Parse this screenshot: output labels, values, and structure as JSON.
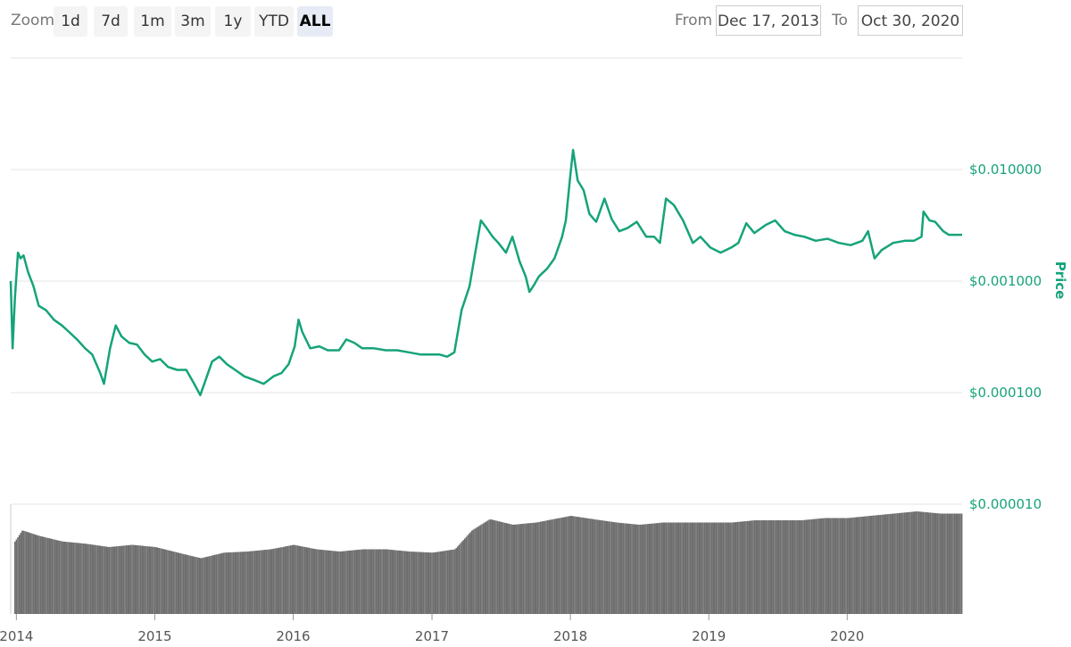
{
  "toolbar": {
    "zoom_label": "Zoom",
    "buttons": [
      "1d",
      "7d",
      "1m",
      "3m",
      "1y",
      "YTD",
      "ALL"
    ],
    "active": "ALL",
    "from_label": "From",
    "from_value": "Dec 17, 2013",
    "to_label": "To",
    "to_value": "Oct 30, 2020"
  },
  "colors": {
    "price_line": "#16a37a",
    "volume_fill": "#6e6e6e",
    "price_axis_label": "#16a37a"
  },
  "chart_data": [
    {
      "type": "line",
      "ylabel": "Price",
      "y_scale": "log",
      "ylim": [
        1e-05,
        0.1
      ],
      "y_ticks": [
        {
          "value": 0.01,
          "label": "$0.010000"
        },
        {
          "value": 0.001,
          "label": "$0.001000"
        },
        {
          "value": 0.0001,
          "label": "$0.000100"
        },
        {
          "value": 1e-05,
          "label": "$0.000010"
        }
      ],
      "x_ticks": [
        "2014",
        "2015",
        "2016",
        "2017",
        "2018",
        "2019",
        "2020"
      ],
      "grid": true,
      "series": [
        {
          "x": [
            "2013-12-17",
            "2013-12-22",
            "2013-12-28",
            "2014-01-05",
            "2014-01-12",
            "2014-01-20",
            "2014-02-01",
            "2014-02-15",
            "2014-03-01",
            "2014-03-20",
            "2014-04-10",
            "2014-05-01",
            "2014-05-20",
            "2014-06-10",
            "2014-07-01",
            "2014-07-20",
            "2014-08-10",
            "2014-08-20",
            "2014-09-05",
            "2014-09-20",
            "2014-10-05",
            "2014-10-25",
            "2014-11-15",
            "2014-12-05",
            "2014-12-25",
            "2015-01-15",
            "2015-02-05",
            "2015-03-01",
            "2015-03-25",
            "2015-04-15",
            "2015-05-01",
            "2015-05-15",
            "2015-06-01",
            "2015-06-20",
            "2015-07-10",
            "2015-08-01",
            "2015-08-25",
            "2015-09-20",
            "2015-10-15",
            "2015-11-10",
            "2015-12-01",
            "2015-12-20",
            "2016-01-05",
            "2016-01-15",
            "2016-01-25",
            "2016-02-15",
            "2016-03-10",
            "2016-04-01",
            "2016-05-01",
            "2016-05-20",
            "2016-06-10",
            "2016-07-01",
            "2016-08-01",
            "2016-09-01",
            "2016-10-01",
            "2016-11-01",
            "2016-12-01",
            "2017-01-01",
            "2017-01-20",
            "2017-02-10",
            "2017-03-01",
            "2017-03-20",
            "2017-04-10",
            "2017-04-25",
            "2017-05-10",
            "2017-05-25",
            "2017-06-10",
            "2017-06-25",
            "2017-07-15",
            "2017-08-01",
            "2017-08-20",
            "2017-09-05",
            "2017-09-15",
            "2017-09-25",
            "2017-10-10",
            "2017-11-01",
            "2017-11-20",
            "2017-12-10",
            "2017-12-20",
            "2018-01-01",
            "2018-01-08",
            "2018-01-20",
            "2018-02-05",
            "2018-02-20",
            "2018-03-10",
            "2018-04-01",
            "2018-04-20",
            "2018-05-10",
            "2018-06-01",
            "2018-06-25",
            "2018-07-20",
            "2018-08-10",
            "2018-08-25",
            "2018-09-10",
            "2018-10-01",
            "2018-10-25",
            "2018-11-20",
            "2018-12-10",
            "2019-01-05",
            "2019-02-01",
            "2019-03-01",
            "2019-03-20",
            "2019-04-10",
            "2019-05-01",
            "2019-06-01",
            "2019-06-25",
            "2019-07-20",
            "2019-08-15",
            "2019-09-10",
            "2019-10-10",
            "2019-11-10",
            "2019-12-10",
            "2020-01-10",
            "2020-02-10",
            "2020-02-25",
            "2020-03-13",
            "2020-04-01",
            "2020-05-01",
            "2020-06-01",
            "2020-06-25",
            "2020-07-15",
            "2020-07-20",
            "2020-08-05",
            "2020-08-20",
            "2020-09-10",
            "2020-09-25",
            "2020-10-10",
            "2020-10-30"
          ],
          "y": [
            0.001,
            0.00025,
            0.0007,
            0.0018,
            0.0016,
            0.0017,
            0.0012,
            0.0009,
            0.0006,
            0.00055,
            0.00045,
            0.0004,
            0.00035,
            0.0003,
            0.00025,
            0.00022,
            0.00015,
            0.00012,
            0.00025,
            0.0004,
            0.00032,
            0.00028,
            0.00027,
            0.00022,
            0.00019,
            0.0002,
            0.00017,
            0.00016,
            0.00016,
            0.00012,
            9.5e-05,
            0.00013,
            0.00019,
            0.00021,
            0.00018,
            0.00016,
            0.00014,
            0.00013,
            0.00012,
            0.00014,
            0.00015,
            0.00018,
            0.00026,
            0.00045,
            0.00035,
            0.00025,
            0.00026,
            0.00024,
            0.00024,
            0.0003,
            0.00028,
            0.00025,
            0.00025,
            0.00024,
            0.00024,
            0.00023,
            0.00022,
            0.00022,
            0.00022,
            0.00021,
            0.00023,
            0.00055,
            0.0009,
            0.0018,
            0.0035,
            0.003,
            0.0025,
            0.0022,
            0.0018,
            0.0025,
            0.0015,
            0.0011,
            0.0008,
            0.0009,
            0.0011,
            0.0013,
            0.0016,
            0.0025,
            0.0035,
            0.009,
            0.015,
            0.008,
            0.0065,
            0.004,
            0.0034,
            0.0055,
            0.0036,
            0.0028,
            0.003,
            0.0034,
            0.0025,
            0.0025,
            0.0022,
            0.0055,
            0.0048,
            0.0035,
            0.0022,
            0.0025,
            0.002,
            0.0018,
            0.002,
            0.0022,
            0.0033,
            0.0027,
            0.0032,
            0.0035,
            0.0028,
            0.0026,
            0.0025,
            0.0023,
            0.0024,
            0.0022,
            0.0021,
            0.0023,
            0.0028,
            0.0016,
            0.0019,
            0.0022,
            0.0023,
            0.0023,
            0.0025,
            0.0042,
            0.0035,
            0.0034,
            0.0028,
            0.0026,
            0.0026,
            0.0026
          ]
        }
      ]
    },
    {
      "type": "area",
      "ylabel": "",
      "y_scale": "log",
      "note": "volume bars, unlabelled axis",
      "series": [
        {
          "x": [
            "2013-12-17",
            "2014-01-15",
            "2014-03-01",
            "2014-05-01",
            "2014-07-01",
            "2014-09-01",
            "2014-11-01",
            "2015-01-01",
            "2015-03-01",
            "2015-05-01",
            "2015-07-01",
            "2015-09-01",
            "2015-11-01",
            "2016-01-01",
            "2016-03-01",
            "2016-05-01",
            "2016-07-01",
            "2016-09-01",
            "2016-11-01",
            "2017-01-01",
            "2017-03-01",
            "2017-04-15",
            "2017-06-01",
            "2017-08-01",
            "2017-10-01",
            "2018-01-01",
            "2018-03-01",
            "2018-05-01",
            "2018-07-01",
            "2018-09-01",
            "2018-11-01",
            "2019-01-01",
            "2019-03-01",
            "2019-05-01",
            "2019-07-01",
            "2019-09-01",
            "2019-11-01",
            "2020-01-01",
            "2020-03-01",
            "2020-05-01",
            "2020-07-01",
            "2020-09-01",
            "2020-10-30"
          ],
          "y": [
            60,
            75,
            70,
            65,
            63,
            60,
            62,
            60,
            55,
            50,
            55,
            56,
            58,
            62,
            58,
            56,
            58,
            58,
            56,
            55,
            58,
            75,
            85,
            80,
            82,
            88,
            85,
            82,
            80,
            82,
            82,
            82,
            82,
            84,
            84,
            84,
            86,
            86,
            88,
            90,
            92,
            90,
            90
          ]
        }
      ]
    }
  ]
}
